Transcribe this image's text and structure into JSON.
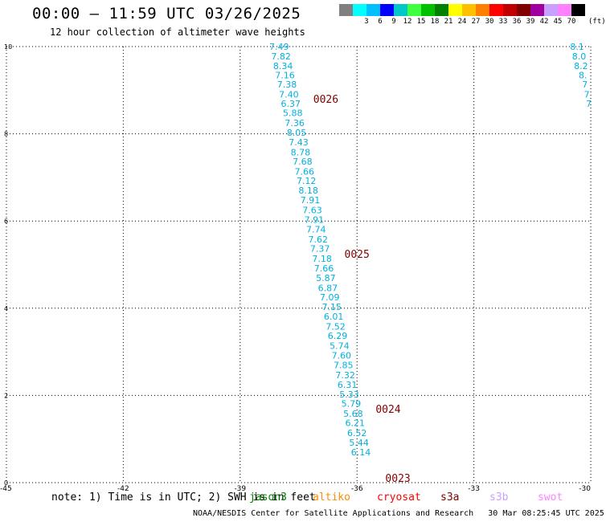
{
  "header": {
    "title": "00:00 – 11:59 UTC 03/26/2025",
    "subtitle": "12 hour collection of altimeter wave heights"
  },
  "color_legend": {
    "unit": "(ft)",
    "entries": [
      {
        "label": "",
        "color": "#808080"
      },
      {
        "label": "3",
        "color": "#00ffff"
      },
      {
        "label": "6",
        "color": "#00bfff"
      },
      {
        "label": "9",
        "color": "#0000ff"
      },
      {
        "label": "12",
        "color": "#00c8c8"
      },
      {
        "label": "15",
        "color": "#40ff40"
      },
      {
        "label": "18",
        "color": "#00c000"
      },
      {
        "label": "21",
        "color": "#008000"
      },
      {
        "label": "24",
        "color": "#ffff00"
      },
      {
        "label": "27",
        "color": "#ffc000"
      },
      {
        "label": "30",
        "color": "#ff8000"
      },
      {
        "label": "33",
        "color": "#ff0000"
      },
      {
        "label": "36",
        "color": "#c00000"
      },
      {
        "label": "39",
        "color": "#800000"
      },
      {
        "label": "42",
        "color": "#a000a0"
      },
      {
        "label": "45",
        "color": "#c8a0ff"
      },
      {
        "label": "70",
        "color": "#ff80ff"
      },
      {
        "label": "",
        "color": "#000000"
      }
    ]
  },
  "footer": {
    "note": "note: 1) Time is in UTC; 2) SWH is in feet",
    "satellites": [
      {
        "name": "jason3",
        "color": "#008000"
      },
      {
        "name": "altiko",
        "color": "#ff8c00"
      },
      {
        "name": "cryosat",
        "color": "#ff0000"
      },
      {
        "name": "s3a",
        "color": "#800000"
      },
      {
        "name": "s3b",
        "color": "#c8a0ff"
      },
      {
        "name": "swot",
        "color": "#ff80ff"
      }
    ],
    "credit": "NOAA/NESDIS Center for Satellite Applications and Research",
    "timestamp": "30 Mar 08:25:45 UTC 2025"
  },
  "chart_data": {
    "type": "scatter",
    "title": "00:00 – 11:59 UTC 03/26/2025",
    "subtitle": "12 hour collection of altimeter wave heights",
    "xlabel": "",
    "ylabel": "",
    "xlim": [
      -45,
      -30
    ],
    "ylim": [
      0,
      10
    ],
    "xticks": [
      "-45",
      "-42",
      "-39",
      "-36",
      "-33",
      "-30"
    ],
    "yticks": [
      "0",
      "2",
      "4",
      "6",
      "8",
      "10"
    ],
    "grid": true,
    "value_color": "#00b0e0",
    "marker_color": "#800000",
    "series": [
      {
        "points": [
          {
            "lon": -38.0,
            "lat": 10.0,
            "swh": "7.49"
          },
          {
            "lon": -37.95,
            "lat": 9.78,
            "swh": "7.82"
          },
          {
            "lon": -37.9,
            "lat": 9.56,
            "swh": "8.34"
          },
          {
            "lon": -37.85,
            "lat": 9.35,
            "swh": "7.16"
          },
          {
            "lon": -37.8,
            "lat": 9.13,
            "swh": "7.38"
          },
          {
            "lon": -37.75,
            "lat": 8.9,
            "swh": "7.40"
          },
          {
            "lon": -37.7,
            "lat": 8.69,
            "swh": "6.37"
          },
          {
            "lon": -37.65,
            "lat": 8.48,
            "swh": "5.88"
          },
          {
            "lon": -37.6,
            "lat": 8.25,
            "swh": "7.36"
          },
          {
            "lon": -37.55,
            "lat": 8.03,
            "swh": "8.05"
          },
          {
            "lon": -37.5,
            "lat": 7.81,
            "swh": "7.43"
          },
          {
            "lon": -37.45,
            "lat": 7.58,
            "swh": "8.78"
          },
          {
            "lon": -37.4,
            "lat": 7.37,
            "swh": "7.68"
          },
          {
            "lon": -37.35,
            "lat": 7.14,
            "swh": "7.66"
          },
          {
            "lon": -37.3,
            "lat": 6.92,
            "swh": "7.12"
          },
          {
            "lon": -37.25,
            "lat": 6.7,
            "swh": "8.18"
          },
          {
            "lon": -37.2,
            "lat": 6.48,
            "swh": "7.91"
          },
          {
            "lon": -37.15,
            "lat": 6.25,
            "swh": "7.63"
          },
          {
            "lon": -37.1,
            "lat": 6.03,
            "swh": "7.91"
          },
          {
            "lon": -37.05,
            "lat": 5.81,
            "swh": "7.74"
          },
          {
            "lon": -37.0,
            "lat": 5.58,
            "swh": "7.62"
          },
          {
            "lon": -36.95,
            "lat": 5.37,
            "swh": "7.37"
          },
          {
            "lon": -36.9,
            "lat": 5.14,
            "swh": "7.18"
          },
          {
            "lon": -36.85,
            "lat": 4.92,
            "swh": "7.66"
          },
          {
            "lon": -36.8,
            "lat": 4.7,
            "swh": "5.87"
          },
          {
            "lon": -36.75,
            "lat": 4.47,
            "swh": "6.87"
          },
          {
            "lon": -36.7,
            "lat": 4.25,
            "swh": "7.09"
          },
          {
            "lon": -36.65,
            "lat": 4.03,
            "swh": "7.15"
          },
          {
            "lon": -36.6,
            "lat": 3.81,
            "swh": "6.01"
          },
          {
            "lon": -36.55,
            "lat": 3.58,
            "swh": "7.52"
          },
          {
            "lon": -36.5,
            "lat": 3.37,
            "swh": "6.29"
          },
          {
            "lon": -36.45,
            "lat": 3.14,
            "swh": "5.74"
          },
          {
            "lon": -36.4,
            "lat": 2.92,
            "swh": "7.60"
          },
          {
            "lon": -36.35,
            "lat": 2.7,
            "swh": "7.85"
          },
          {
            "lon": -36.3,
            "lat": 2.47,
            "swh": "7.32"
          },
          {
            "lon": -36.25,
            "lat": 2.25,
            "swh": "6.31"
          },
          {
            "lon": -36.2,
            "lat": 2.03,
            "swh": "5.33"
          },
          {
            "lon": -36.15,
            "lat": 1.81,
            "swh": "5.79"
          },
          {
            "lon": -36.1,
            "lat": 1.58,
            "swh": "5.68"
          },
          {
            "lon": -36.05,
            "lat": 1.37,
            "swh": "6.21"
          },
          {
            "lon": -36.0,
            "lat": 1.14,
            "swh": "6.52"
          },
          {
            "lon": -35.95,
            "lat": 0.92,
            "swh": "5.44"
          },
          {
            "lon": -35.9,
            "lat": 0.7,
            "swh": "6.14"
          }
        ]
      },
      {
        "points": [
          {
            "lon": -30.35,
            "lat": 10.0,
            "swh": "8.1"
          },
          {
            "lon": -30.3,
            "lat": 9.78,
            "swh": "8.0"
          },
          {
            "lon": -30.25,
            "lat": 9.56,
            "swh": "8.2"
          },
          {
            "lon": -30.2,
            "lat": 9.35,
            "swh": "8."
          },
          {
            "lon": -30.15,
            "lat": 9.13,
            "swh": "7"
          },
          {
            "lon": -30.1,
            "lat": 8.9,
            "swh": "7"
          },
          {
            "lon": -30.05,
            "lat": 8.69,
            "swh": "7"
          }
        ]
      }
    ],
    "markers": [
      {
        "label": "0026",
        "lon": -36.8,
        "lat": 8.69
      },
      {
        "label": "0025",
        "lon": -36.0,
        "lat": 5.14
      },
      {
        "label": "0024",
        "lon": -35.2,
        "lat": 1.58
      },
      {
        "label": "0023",
        "lon": -34.95,
        "lat": 0.0
      }
    ]
  }
}
